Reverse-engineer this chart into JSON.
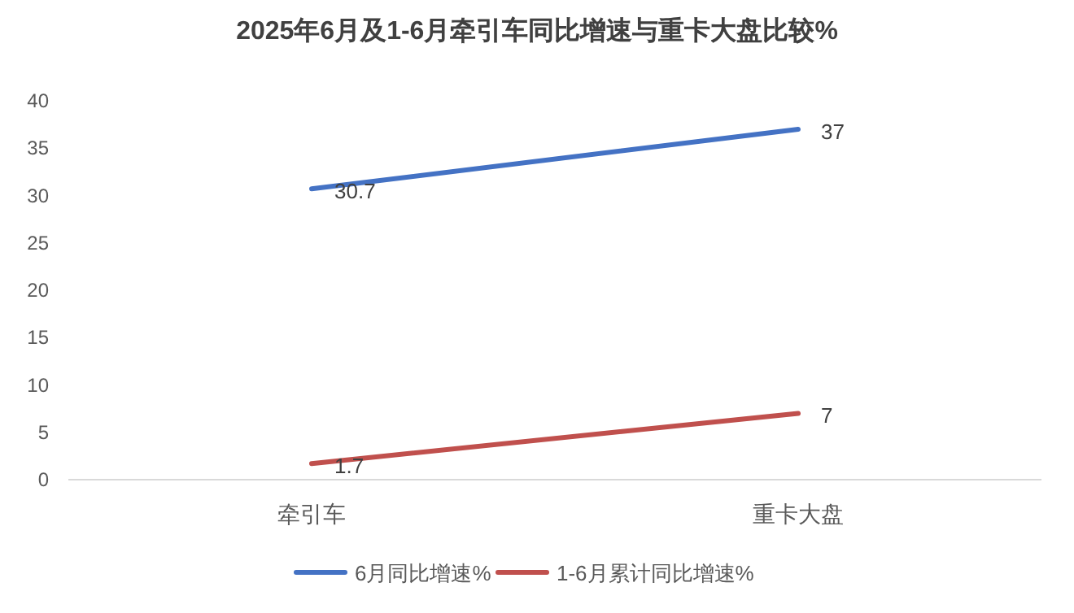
{
  "chart_data": {
    "type": "line",
    "title": "2025年6月及1-6月牵引车同比增速与重卡大盘比较%",
    "categories": [
      "牵引车",
      "重卡大盘"
    ],
    "series": [
      {
        "name": "6月同比增速%",
        "color": "#4472c4",
        "values": [
          30.7,
          37
        ]
      },
      {
        "name": "1-6月累计同比增速%",
        "color": "#c0504d",
        "values": [
          1.7,
          7
        ]
      }
    ],
    "ylim": [
      0,
      40
    ],
    "yticks": [
      0,
      5,
      10,
      15,
      20,
      25,
      30,
      35,
      40
    ],
    "grid": false,
    "legend": "bottom",
    "marker": "none",
    "line_style": "solid",
    "data_labels": true
  }
}
